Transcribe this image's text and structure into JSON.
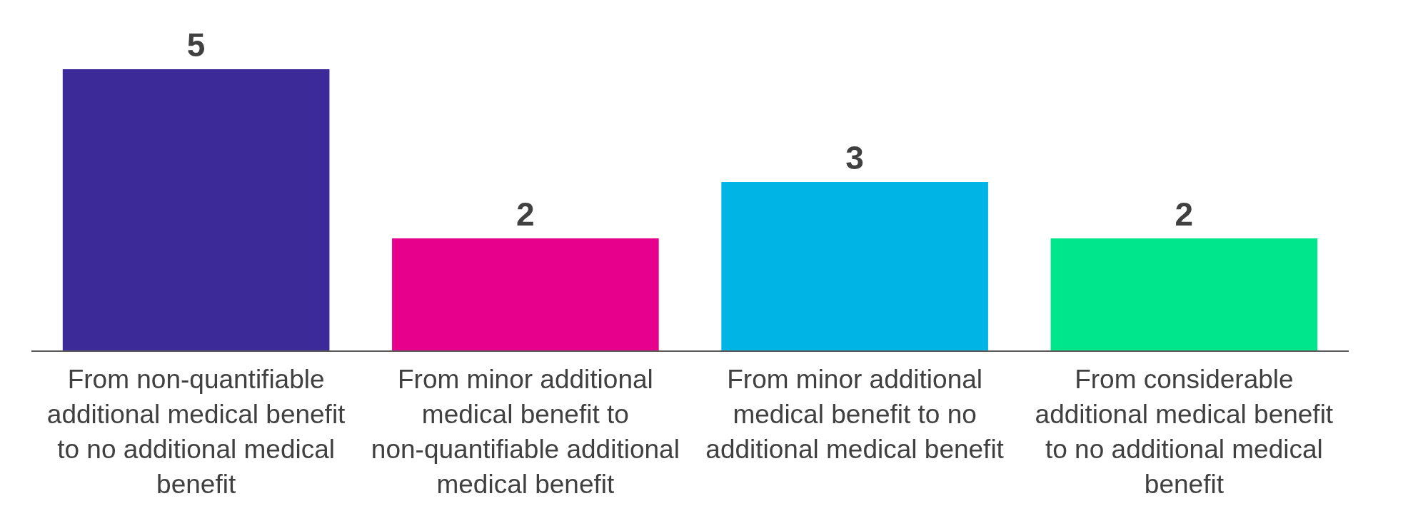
{
  "chart_data": {
    "type": "bar",
    "categories": [
      "From non-quantifiable additional medical benefit to no additional medical benefit",
      "From minor additional medical benefit to non-quantifiable additional medical benefit",
      "From minor additional medical benefit to no additional medical benefit",
      "From considerable additional medical benefit to no additional medical benefit"
    ],
    "values": [
      5,
      2,
      3,
      2
    ],
    "colors": [
      "#3c2a98",
      "#e6008c",
      "#00b4e6",
      "#00e68c"
    ],
    "data_labels": true
  }
}
